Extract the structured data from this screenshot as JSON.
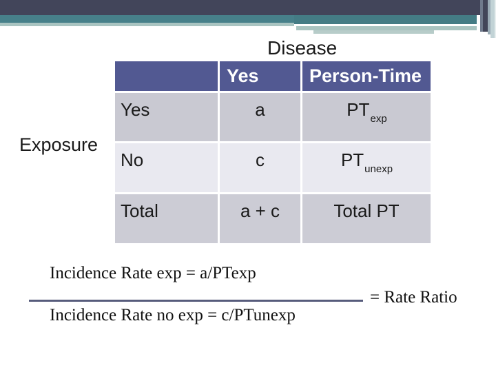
{
  "slide": {
    "title_disease": "Disease",
    "label_exposure": "Exposure"
  },
  "table": {
    "headers": [
      "",
      "Yes",
      "Person-Time"
    ],
    "rows": [
      {
        "label": "Yes",
        "disease_value": "a",
        "pt_base": "PT",
        "pt_sub": "exp"
      },
      {
        "label": "No",
        "disease_value": "c",
        "pt_base": "PT",
        "pt_sub": "unexp"
      },
      {
        "label": "Total",
        "disease_value": "a + c",
        "pt_base": "Total PT",
        "pt_sub": ""
      }
    ]
  },
  "formula": {
    "numerator": "Incidence Rate exp = a/PTexp",
    "denominator": "Incidence Rate no exp = c/PTunexp",
    "result": "= Rate Ratio"
  },
  "colors": {
    "banner_navy": "#42455A",
    "banner_teal": "#47808A",
    "banner_sage": "#A9C4C1",
    "table_header_bg": "#525992",
    "table_row_dark": "#C9C9D2",
    "table_row_light": "#E9E9F0",
    "fraction_line": "#575C7C"
  }
}
